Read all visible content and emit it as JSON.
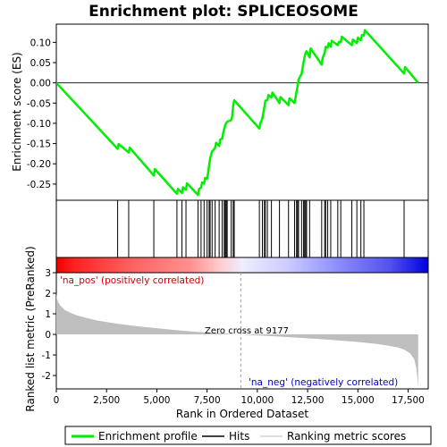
{
  "chart_data": {
    "type": "line",
    "title": "Enrichment plot: SPLICEOSOME",
    "xlabel": "Rank in Ordered Dataset",
    "ylabel_top": "Enrichment score (ES)",
    "ylabel_bottom": "Ranked list metric (PreRanked)",
    "xlim": [
      0,
      18500
    ],
    "x_ticks": [
      0,
      2500,
      5000,
      7500,
      10000,
      12500,
      15000,
      17500
    ],
    "x_tick_labels": [
      "0",
      "2,500",
      "5,000",
      "7,500",
      "10,000",
      "12,500",
      "15,000",
      "17,500"
    ],
    "es_ylim": [
      -0.29,
      0.145
    ],
    "es_ticks": [
      0.1,
      0.05,
      0.0,
      -0.05,
      -0.1,
      -0.15,
      -0.2,
      -0.25
    ],
    "es_tick_labels": [
      "0.10",
      "0.05",
      "0.00",
      "-0.05",
      "-0.10",
      "-0.15",
      "-0.20",
      "-0.25"
    ],
    "metric_ylim": [
      -2.65,
      3.0
    ],
    "metric_ticks": [
      3,
      2,
      1,
      0,
      -1,
      -2
    ],
    "metric_tick_labels": [
      "3",
      "2",
      "1",
      "0",
      "-1",
      "-2"
    ],
    "total_genes": 18000,
    "enrichment_profile": {
      "name": "Enrichment profile",
      "color": "#00ee00",
      "x": [
        0,
        3050,
        3100,
        3600,
        3650,
        4850,
        4900,
        6000,
        6050,
        6250,
        6300,
        6450,
        6500,
        7050,
        7100,
        7200,
        7250,
        7350,
        7400,
        7500,
        7550,
        7600,
        7650,
        7750,
        7800,
        7900,
        7950,
        8100,
        8150,
        8250,
        8300,
        8350,
        8400,
        8450,
        8500,
        8700,
        8750,
        8800,
        8850,
        10100,
        10150,
        10250,
        10300,
        10350,
        10400,
        10500,
        10550,
        10700,
        10750,
        11100,
        11150,
        11550,
        11600,
        11850,
        11900,
        11950,
        12000,
        12050,
        12100,
        12200,
        12250,
        12300,
        12350,
        12400,
        12450,
        12600,
        12650,
        13200,
        13250,
        13350,
        13400,
        13500,
        13550,
        13650,
        13700,
        14000,
        14050,
        14150,
        14200,
        14700,
        14750,
        14950,
        15000,
        15150,
        15200,
        15300,
        15350,
        17300,
        17350,
        18000
      ],
      "es": [
        0.0,
        -0.163,
        -0.151,
        -0.172,
        -0.16,
        -0.229,
        -0.213,
        -0.274,
        -0.262,
        -0.272,
        -0.258,
        -0.264,
        -0.248,
        -0.277,
        -0.262,
        -0.259,
        -0.246,
        -0.249,
        -0.235,
        -0.237,
        -0.222,
        -0.204,
        -0.187,
        -0.169,
        -0.167,
        -0.16,
        -0.148,
        -0.156,
        -0.14,
        -0.138,
        -0.124,
        -0.114,
        -0.105,
        -0.099,
        -0.096,
        -0.092,
        -0.082,
        -0.055,
        -0.043,
        -0.113,
        -0.1,
        -0.088,
        -0.074,
        -0.06,
        -0.044,
        -0.043,
        -0.03,
        -0.036,
        -0.024,
        -0.05,
        -0.035,
        -0.055,
        -0.038,
        -0.05,
        -0.036,
        -0.022,
        -0.008,
        0.008,
        0.013,
        0.022,
        0.037,
        0.051,
        0.064,
        0.074,
        0.078,
        0.063,
        0.085,
        0.045,
        0.062,
        0.074,
        0.089,
        0.087,
        0.098,
        0.089,
        0.104,
        0.093,
        0.101,
        0.1,
        0.114,
        0.093,
        0.107,
        0.098,
        0.112,
        0.105,
        0.118,
        0.117,
        0.13,
        0.023,
        0.039,
        0.0
      ]
    },
    "hits": {
      "name": "Hits",
      "color": "#000000",
      "x": [
        3050,
        3600,
        4850,
        6000,
        6250,
        6450,
        7050,
        7200,
        7350,
        7500,
        7600,
        7650,
        7750,
        7900,
        8100,
        8250,
        8350,
        8400,
        8450,
        8500,
        8700,
        8800,
        8850,
        10100,
        10250,
        10350,
        10400,
        10500,
        10700,
        11100,
        11550,
        11850,
        11950,
        12000,
        12050,
        12200,
        12300,
        12350,
        12400,
        12450,
        12600,
        13200,
        13350,
        13400,
        13500,
        13650,
        14000,
        14150,
        14700,
        14950,
        15150,
        15300,
        17300
      ]
    },
    "ranking_metric": {
      "name": "Ranking metric scores",
      "color": "#bebebe",
      "x": [
        0,
        30,
        100,
        200,
        400,
        700,
        1000,
        1500,
        2000,
        3000,
        4000,
        5000,
        6000,
        7000,
        8000,
        9177,
        10000,
        11000,
        12000,
        13000,
        14000,
        15000,
        16000,
        16500,
        17000,
        17300,
        17600,
        17800,
        17900,
        17960,
        18000
      ],
      "y": [
        2.0,
        1.75,
        1.55,
        1.4,
        1.2,
        1.05,
        0.93,
        0.8,
        0.68,
        0.52,
        0.4,
        0.3,
        0.2,
        0.12,
        0.06,
        0.0,
        -0.05,
        -0.1,
        -0.16,
        -0.22,
        -0.29,
        -0.37,
        -0.47,
        -0.55,
        -0.64,
        -0.74,
        -0.92,
        -1.2,
        -1.6,
        -2.1,
        -2.6
      ]
    },
    "zero_cross": {
      "rank": 9177,
      "label": "Zero cross at 9177"
    },
    "pos_label": "'na_pos' (positively correlated)",
    "neg_label": "'na_neg' (negatively correlated)"
  },
  "legend": {
    "position": "bottom",
    "items": [
      {
        "label": "Enrichment profile",
        "color": "#00ee00"
      },
      {
        "label": "Hits",
        "color": "#000000"
      },
      {
        "label": "Ranking metric scores",
        "color": "#bebebe"
      }
    ]
  },
  "colors": {
    "pos_label": "#cc0000",
    "neg_label": "#0000cc"
  }
}
